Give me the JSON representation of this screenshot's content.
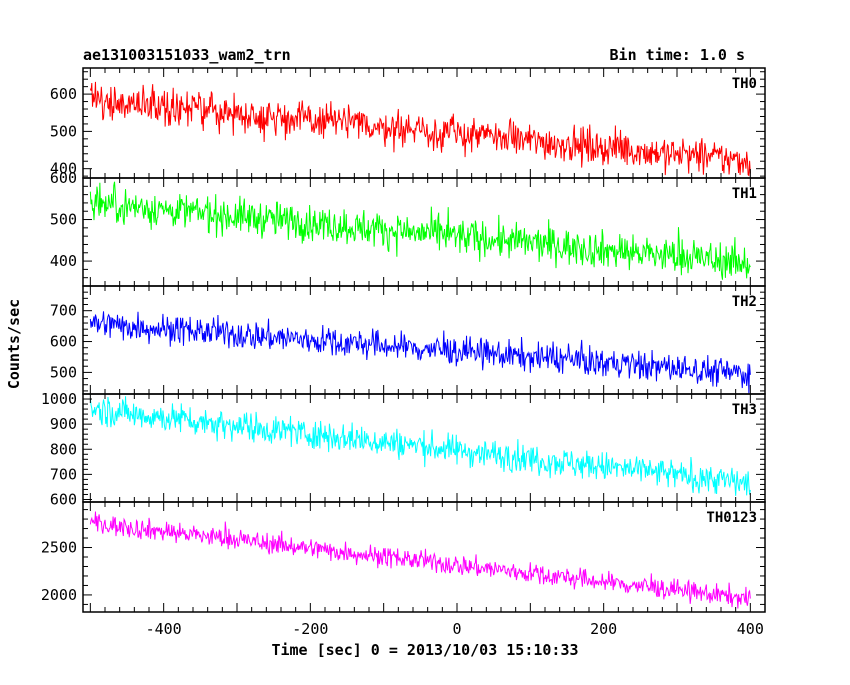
{
  "header": {
    "title": "ae131003151033_wam2_trn",
    "bin_time": "Bin time: 1.0 s"
  },
  "chart_data": {
    "type": "line",
    "xlabel": "Time [sec] 0 = 2013/10/03 15:10:33",
    "ylabel": "Counts/sec",
    "xlim": [
      -510,
      420
    ],
    "x_ticks": [
      -400,
      -200,
      0,
      200,
      400
    ],
    "x_start": -500,
    "x_end": 400,
    "x_step": 1,
    "grid": false,
    "panels": [
      {
        "label": "TH0",
        "color": "#ff0000",
        "ylim": [
          375,
          670
        ],
        "y_ticks": [
          400,
          500,
          600
        ],
        "trend": {
          "start": 585,
          "end": 420
        },
        "noise": 24
      },
      {
        "label": "TH1",
        "color": "#00ff00",
        "ylim": [
          340,
          600
        ],
        "y_ticks": [
          400,
          500,
          600
        ],
        "trend": {
          "start": 540,
          "end": 395
        },
        "noise": 22
      },
      {
        "label": "TH2",
        "color": "#0000ff",
        "ylim": [
          430,
          780
        ],
        "y_ticks": [
          500,
          600,
          700
        ],
        "trend": {
          "start": 660,
          "end": 495
        },
        "noise": 24
      },
      {
        "label": "TH3",
        "color": "#00ffff",
        "ylim": [
          590,
          1020
        ],
        "y_ticks": [
          600,
          700,
          800,
          900,
          1000
        ],
        "trend": {
          "start": 960,
          "end": 665
        },
        "noise": 30
      },
      {
        "label": "TH0123",
        "color": "#ff00ff",
        "ylim": [
          1820,
          2980
        ],
        "y_ticks": [
          2000,
          2500
        ],
        "trend": {
          "start": 2760,
          "end": 1960
        },
        "noise": 55
      }
    ]
  }
}
